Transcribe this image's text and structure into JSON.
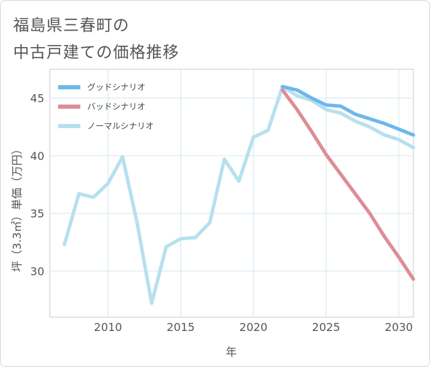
{
  "title_lines": [
    "福島県三春町の",
    "中古戸建ての価格推移"
  ],
  "chart_data": {
    "type": "line",
    "xlabel": "年",
    "ylabel": "坪（3.3㎡）単価（万円）",
    "xlim": [
      2006,
      2031
    ],
    "ylim": [
      26,
      47.5
    ],
    "x_ticks": [
      2010,
      2015,
      2020,
      2025,
      2030
    ],
    "y_ticks": [
      30,
      35,
      40,
      45
    ],
    "grid": true,
    "legend_position": "top-left",
    "series": [
      {
        "name": "グッドシナリオ",
        "color": "#6cb8ec",
        "points": [
          [
            2022,
            46.0
          ],
          [
            2023,
            45.7
          ],
          [
            2024,
            45.0
          ],
          [
            2025,
            44.4
          ],
          [
            2026,
            44.3
          ],
          [
            2027,
            43.6
          ],
          [
            2028,
            43.2
          ],
          [
            2029,
            42.8
          ],
          [
            2030,
            42.3
          ],
          [
            2031,
            41.8
          ]
        ]
      },
      {
        "name": "バッドシナリオ",
        "color": "#de8c96",
        "points": [
          [
            2022,
            45.7
          ],
          [
            2023,
            44.0
          ],
          [
            2024,
            42.1
          ],
          [
            2025,
            40.1
          ],
          [
            2026,
            38.4
          ],
          [
            2027,
            36.7
          ],
          [
            2028,
            35.0
          ],
          [
            2029,
            33.0
          ],
          [
            2030,
            31.2
          ],
          [
            2031,
            29.3
          ]
        ]
      },
      {
        "name": "ノーマルシナリオ",
        "color": "#b6e0ee",
        "points": [
          [
            2007,
            32.3
          ],
          [
            2008,
            36.7
          ],
          [
            2009,
            36.4
          ],
          [
            2010,
            37.6
          ],
          [
            2011,
            39.9
          ],
          [
            2012,
            34.2
          ],
          [
            2013,
            27.2
          ],
          [
            2014,
            32.1
          ],
          [
            2015,
            32.8
          ],
          [
            2016,
            32.9
          ],
          [
            2017,
            34.2
          ],
          [
            2018,
            39.7
          ],
          [
            2019,
            37.8
          ],
          [
            2020,
            41.6
          ],
          [
            2021,
            42.2
          ],
          [
            2022,
            46.0
          ],
          [
            2023,
            45.2
          ],
          [
            2024,
            44.8
          ],
          [
            2025,
            44.0
          ],
          [
            2026,
            43.7
          ],
          [
            2027,
            43.0
          ],
          [
            2028,
            42.5
          ],
          [
            2029,
            41.8
          ],
          [
            2030,
            41.4
          ],
          [
            2031,
            40.7
          ]
        ]
      }
    ]
  }
}
